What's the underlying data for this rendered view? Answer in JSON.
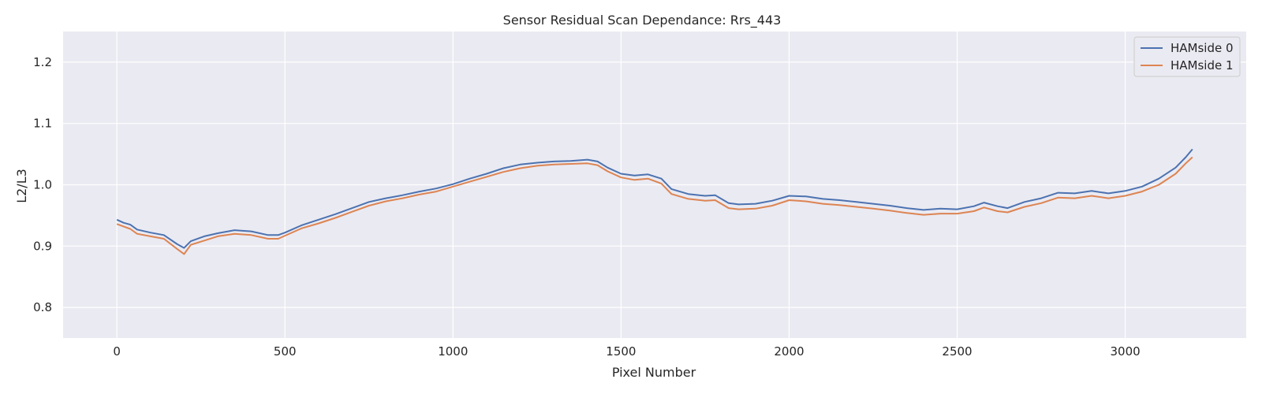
{
  "chart_data": {
    "type": "line",
    "title": "Sensor Residual Scan Dependance: Rrs_443",
    "xlabel": "Pixel Number",
    "ylabel": "L2/L3",
    "xlim": [
      -160,
      3360
    ],
    "ylim": [
      0.75,
      1.25
    ],
    "xticks": [
      0,
      500,
      1000,
      1500,
      2000,
      2500,
      3000
    ],
    "xtick_labels": [
      "0",
      "500",
      "1000",
      "1500",
      "2000",
      "2500",
      "3000"
    ],
    "yticks": [
      0.8,
      0.9,
      1.0,
      1.1,
      1.2
    ],
    "ytick_labels": [
      "0.8",
      "0.9",
      "1.0",
      "1.1",
      "1.2"
    ],
    "grid": true,
    "legend_position": "top-right",
    "series": [
      {
        "name": "HAMside 0",
        "color": "#4c72b0",
        "x": [
          0,
          20,
          40,
          60,
          100,
          140,
          180,
          200,
          220,
          260,
          300,
          350,
          400,
          450,
          480,
          500,
          550,
          600,
          650,
          700,
          750,
          800,
          850,
          900,
          950,
          1000,
          1050,
          1100,
          1150,
          1200,
          1250,
          1300,
          1350,
          1400,
          1430,
          1460,
          1500,
          1540,
          1580,
          1620,
          1650,
          1700,
          1750,
          1780,
          1820,
          1850,
          1900,
          1950,
          2000,
          2050,
          2100,
          2150,
          2200,
          2250,
          2300,
          2350,
          2400,
          2450,
          2500,
          2550,
          2580,
          2620,
          2650,
          2700,
          2750,
          2800,
          2850,
          2900,
          2950,
          3000,
          3050,
          3100,
          3150,
          3180,
          3200
        ],
        "values": [
          0.943,
          0.938,
          0.935,
          0.927,
          0.922,
          0.918,
          0.903,
          0.897,
          0.908,
          0.916,
          0.921,
          0.926,
          0.924,
          0.918,
          0.918,
          0.922,
          0.934,
          0.943,
          0.952,
          0.962,
          0.972,
          0.978,
          0.983,
          0.989,
          0.994,
          1.001,
          1.01,
          1.018,
          1.027,
          1.033,
          1.036,
          1.038,
          1.039,
          1.041,
          1.038,
          1.028,
          1.018,
          1.015,
          1.017,
          1.01,
          0.993,
          0.985,
          0.982,
          0.983,
          0.97,
          0.968,
          0.969,
          0.974,
          0.982,
          0.981,
          0.977,
          0.975,
          0.972,
          0.969,
          0.966,
          0.962,
          0.959,
          0.961,
          0.96,
          0.965,
          0.971,
          0.965,
          0.962,
          0.972,
          0.978,
          0.987,
          0.986,
          0.99,
          0.986,
          0.99,
          0.997,
          1.01,
          1.028,
          1.045,
          1.058
        ]
      },
      {
        "name": "HAMside 1",
        "color": "#dd8452",
        "x": [
          0,
          20,
          40,
          60,
          100,
          140,
          180,
          200,
          220,
          260,
          300,
          350,
          400,
          450,
          480,
          500,
          550,
          600,
          650,
          700,
          750,
          800,
          850,
          900,
          950,
          1000,
          1050,
          1100,
          1150,
          1200,
          1250,
          1300,
          1350,
          1400,
          1430,
          1460,
          1500,
          1540,
          1580,
          1620,
          1650,
          1700,
          1750,
          1780,
          1820,
          1850,
          1900,
          1950,
          2000,
          2050,
          2100,
          2150,
          2200,
          2250,
          2300,
          2350,
          2400,
          2450,
          2500,
          2550,
          2580,
          2620,
          2650,
          2700,
          2750,
          2800,
          2850,
          2900,
          2950,
          3000,
          3050,
          3100,
          3150,
          3180,
          3200
        ],
        "values": [
          0.936,
          0.932,
          0.928,
          0.92,
          0.916,
          0.912,
          0.895,
          0.887,
          0.902,
          0.909,
          0.916,
          0.92,
          0.918,
          0.912,
          0.912,
          0.917,
          0.929,
          0.937,
          0.946,
          0.956,
          0.966,
          0.973,
          0.978,
          0.984,
          0.989,
          0.997,
          1.005,
          1.013,
          1.021,
          1.027,
          1.031,
          1.033,
          1.034,
          1.035,
          1.032,
          1.022,
          1.012,
          1.008,
          1.01,
          1.002,
          0.985,
          0.977,
          0.974,
          0.975,
          0.962,
          0.96,
          0.961,
          0.966,
          0.975,
          0.973,
          0.969,
          0.967,
          0.964,
          0.961,
          0.958,
          0.954,
          0.951,
          0.953,
          0.953,
          0.957,
          0.963,
          0.957,
          0.955,
          0.964,
          0.97,
          0.979,
          0.978,
          0.982,
          0.978,
          0.982,
          0.989,
          1.0,
          1.018,
          1.035,
          1.045
        ]
      }
    ]
  }
}
